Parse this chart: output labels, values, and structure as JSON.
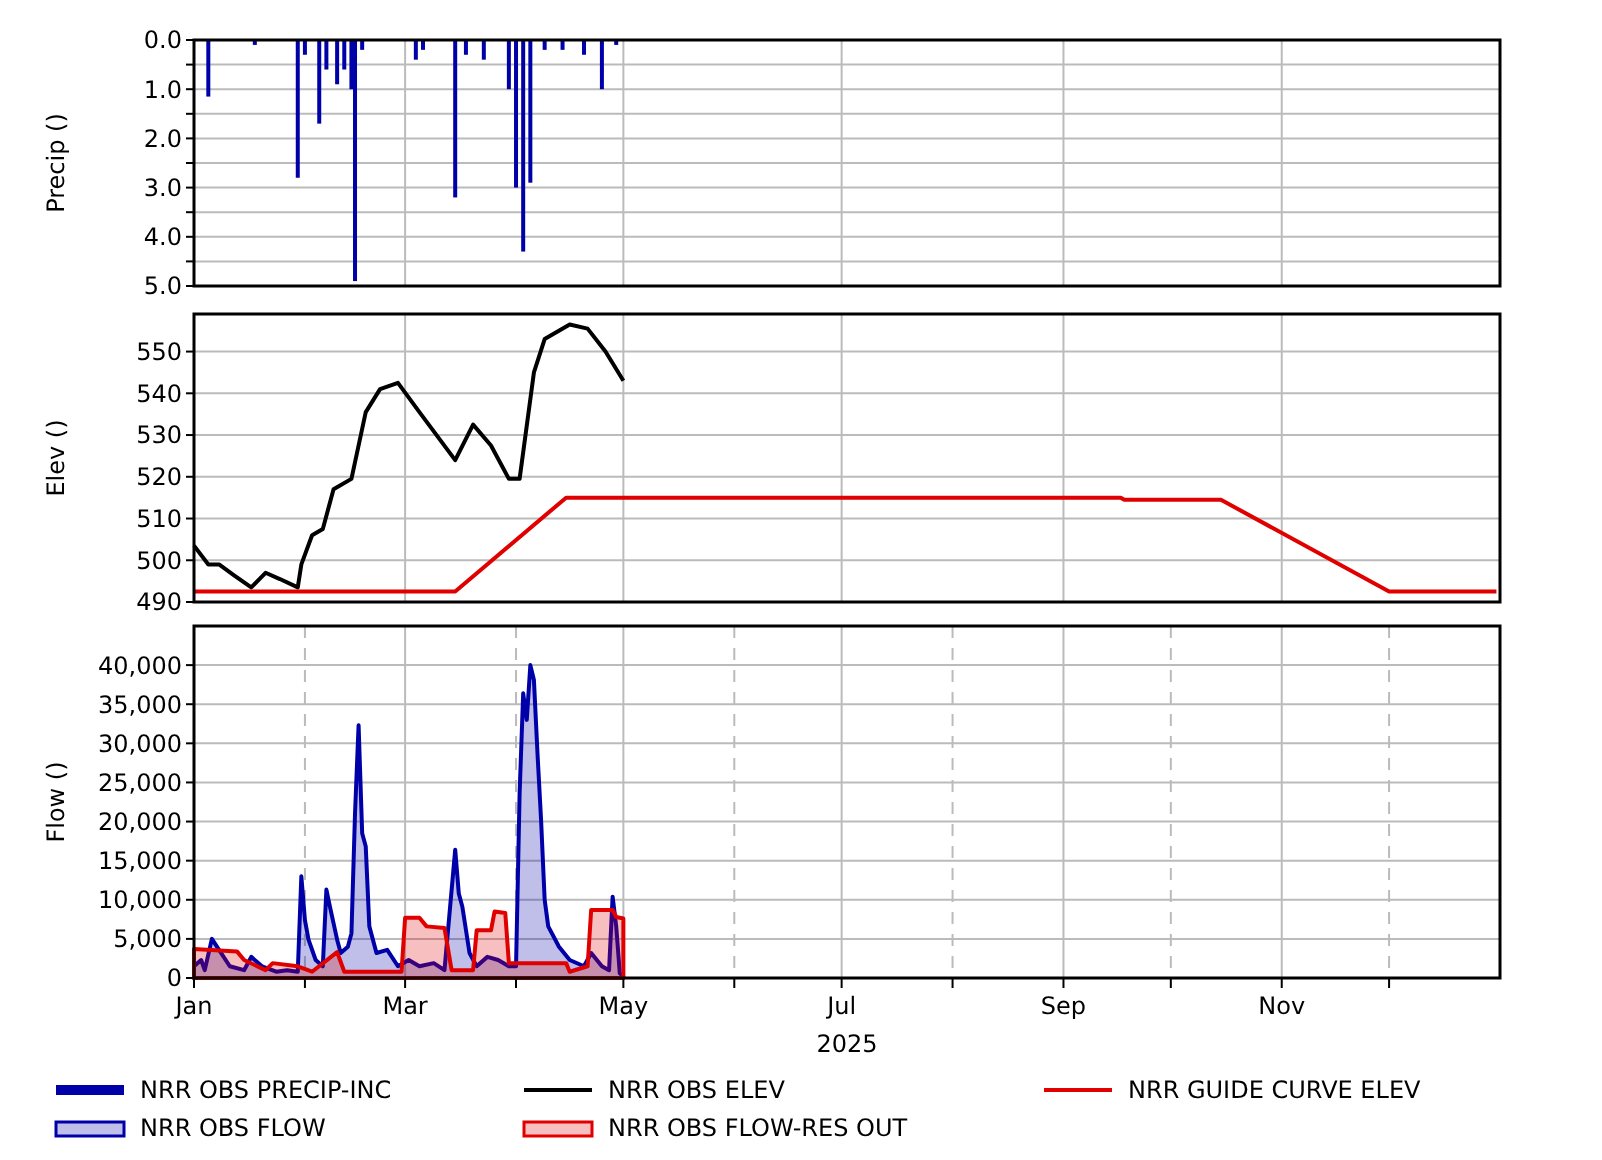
{
  "chart_data": [
    {
      "type": "bar",
      "ylabel": "Precip ()",
      "ylim": [
        5,
        0
      ],
      "yticks": [
        {
          "value": 0,
          "label": "0.0"
        },
        {
          "value": 0.5,
          "label": null
        },
        {
          "value": 1,
          "label": "1.0"
        },
        {
          "value": 1.5,
          "label": null
        },
        {
          "value": 2,
          "label": "2.0"
        },
        {
          "value": 2.5,
          "label": null
        },
        {
          "value": 3,
          "label": "3.0"
        },
        {
          "value": 3.5,
          "label": null
        },
        {
          "value": 4,
          "label": "4.0"
        },
        {
          "value": 4.5,
          "label": null
        },
        {
          "value": 5,
          "label": "5.0"
        }
      ],
      "xlim": [
        "2025-01-01",
        "2026-01-01"
      ],
      "xticks": [
        {
          "value": "2025-03-01",
          "label": null
        },
        {
          "value": "2025-05-01",
          "label": null
        },
        {
          "value": "2025-07-01",
          "label": null
        },
        {
          "value": "2025-09-01",
          "label": null
        },
        {
          "value": "2025-11-01",
          "label": null
        }
      ],
      "tick_labels": "y",
      "grid": true,
      "legend": "bottom",
      "series": [
        {
          "name": "NRR OBS PRECIP-INC",
          "color": "#0000a8",
          "x": [
            "2025-01-05",
            "2025-01-18",
            "2025-01-30",
            "2025-02-01",
            "2025-02-05",
            "2025-02-07",
            "2025-02-10",
            "2025-02-12",
            "2025-02-14",
            "2025-02-15",
            "2025-02-17",
            "2025-03-04",
            "2025-03-06",
            "2025-03-15",
            "2025-03-18",
            "2025-03-23",
            "2025-03-30",
            "2025-04-01",
            "2025-04-03",
            "2025-04-05",
            "2025-04-09",
            "2025-04-14",
            "2025-04-20",
            "2025-04-25",
            "2025-04-29"
          ],
          "values": [
            1.15,
            0.1,
            2.8,
            0.3,
            1.7,
            0.6,
            0.9,
            0.6,
            1.0,
            4.9,
            0.2,
            0.4,
            0.2,
            3.2,
            0.3,
            0.4,
            1.0,
            3.0,
            4.3,
            2.9,
            0.2,
            0.2,
            0.3,
            1.0,
            0.1
          ]
        }
      ]
    },
    {
      "type": "line",
      "ylabel": "Elev ()",
      "ylim": [
        490,
        559
      ],
      "yticks": [
        490,
        500,
        510,
        520,
        530,
        540,
        550
      ],
      "xlim": [
        "2025-01-01",
        "2026-01-01"
      ],
      "xticks": [
        {
          "value": "2025-03-01",
          "label": null
        },
        {
          "value": "2025-05-01",
          "label": null
        },
        {
          "value": "2025-07-01",
          "label": null
        },
        {
          "value": "2025-09-01",
          "label": null
        },
        {
          "value": "2025-11-01",
          "label": null
        }
      ],
      "tick_labels": "y",
      "grid": true,
      "legend": "bottom",
      "series": [
        {
          "name": "NRR OBS ELEV",
          "color": "#000000",
          "x": [
            "2025-01-01",
            "2025-01-05",
            "2025-01-08",
            "2025-01-12",
            "2025-01-17",
            "2025-01-21",
            "2025-01-25",
            "2025-01-30",
            "2025-01-31",
            "2025-02-03",
            "2025-02-06",
            "2025-02-09",
            "2025-02-14",
            "2025-02-18",
            "2025-02-22",
            "2025-02-27",
            "2025-03-05",
            "2025-03-15",
            "2025-03-20",
            "2025-03-25",
            "2025-03-30",
            "2025-04-02",
            "2025-04-06",
            "2025-04-09",
            "2025-04-16",
            "2025-04-21",
            "2025-04-26",
            "2025-05-01"
          ],
          "values": [
            503.5,
            499,
            499,
            496.5,
            493.5,
            497,
            495.5,
            493.5,
            499,
            506,
            507.5,
            517,
            519.5,
            535.5,
            541,
            542.5,
            535.5,
            524,
            532.5,
            527.5,
            519.5,
            519.5,
            545,
            553,
            556.5,
            555.5,
            550,
            543
          ]
        },
        {
          "name": "NRR GUIDE CURVE ELEV",
          "color": "#e00000",
          "x": [
            "2025-01-01",
            "2025-03-15",
            "2025-04-15",
            "2025-09-17",
            "2025-09-18",
            "2025-10-15",
            "2025-12-01",
            "2025-12-31"
          ],
          "values": [
            492.5,
            492.5,
            515,
            515,
            514.5,
            514.5,
            492.5,
            492.5
          ]
        }
      ]
    },
    {
      "type": "area",
      "ylabel": "Flow ()",
      "xlabel": "2025",
      "ylim": [
        0,
        45000
      ],
      "yticks": [
        {
          "value": 0,
          "label": "0"
        },
        {
          "value": 5000,
          "label": "5,000"
        },
        {
          "value": 10000,
          "label": "10,000"
        },
        {
          "value": 15000,
          "label": "15,000"
        },
        {
          "value": 20000,
          "label": "20,000"
        },
        {
          "value": 25000,
          "label": "25,000"
        },
        {
          "value": 30000,
          "label": "30,000"
        },
        {
          "value": 35000,
          "label": "35,000"
        },
        {
          "value": 40000,
          "label": "40,000"
        }
      ],
      "xlim": [
        "2025-01-01",
        "2026-01-01"
      ],
      "xticks": [
        {
          "value": "2025-01-01",
          "label": "Jan"
        },
        {
          "value": "2025-02-01",
          "label": null
        },
        {
          "value": "2025-03-01",
          "label": "Mar"
        },
        {
          "value": "2025-04-01",
          "label": null
        },
        {
          "value": "2025-05-01",
          "label": "May"
        },
        {
          "value": "2025-06-01",
          "label": null
        },
        {
          "value": "2025-07-01",
          "label": "Jul"
        },
        {
          "value": "2025-08-01",
          "label": null
        },
        {
          "value": "2025-09-01",
          "label": "Sep"
        },
        {
          "value": "2025-10-01",
          "label": null
        },
        {
          "value": "2025-11-01",
          "label": "Nov"
        },
        {
          "value": "2025-12-01",
          "label": null
        }
      ],
      "grid": true,
      "legend": "bottom",
      "series": [
        {
          "name": "NRR OBS FLOW",
          "color": "#0000a8",
          "x": [
            "2025-01-01",
            "2025-01-03",
            "2025-01-04",
            "2025-01-06",
            "2025-01-08",
            "2025-01-11",
            "2025-01-15",
            "2025-01-17",
            "2025-01-20",
            "2025-01-24",
            "2025-01-27",
            "2025-01-30",
            "2025-01-31",
            "2025-02-01",
            "2025-02-02",
            "2025-02-04",
            "2025-02-06",
            "2025-02-07",
            "2025-02-08",
            "2025-02-10",
            "2025-02-11",
            "2025-02-13",
            "2025-02-14",
            "2025-02-15",
            "2025-02-16",
            "2025-02-17",
            "2025-02-18",
            "2025-02-19",
            "2025-02-21",
            "2025-02-24",
            "2025-02-27",
            "2025-03-02",
            "2025-03-05",
            "2025-03-09",
            "2025-03-12",
            "2025-03-15",
            "2025-03-16",
            "2025-03-17",
            "2025-03-19",
            "2025-03-21",
            "2025-03-24",
            "2025-03-27",
            "2025-03-30",
            "2025-04-01",
            "2025-04-02",
            "2025-04-03",
            "2025-04-04",
            "2025-04-05",
            "2025-04-06",
            "2025-04-07",
            "2025-04-08",
            "2025-04-09",
            "2025-04-10",
            "2025-04-13",
            "2025-04-16",
            "2025-04-20",
            "2025-04-22",
            "2025-04-25",
            "2025-04-27",
            "2025-04-28",
            "2025-04-29",
            "2025-04-30",
            "2025-05-01"
          ],
          "values": [
            1500,
            2300,
            1000,
            5000,
            3600,
            1500,
            1000,
            2700,
            1500,
            800,
            1000,
            800,
            13000,
            7400,
            4900,
            2300,
            1500,
            11300,
            9100,
            4900,
            3200,
            4000,
            5700,
            21000,
            32300,
            18500,
            16800,
            6600,
            3200,
            3600,
            1500,
            2300,
            1500,
            1900,
            1000,
            16400,
            10800,
            9100,
            3200,
            1500,
            2700,
            2300,
            1500,
            1500,
            23600,
            36400,
            33000,
            40000,
            38100,
            28700,
            20200,
            10000,
            6600,
            4000,
            2300,
            1500,
            3200,
            1500,
            1000,
            10400,
            6600,
            600,
            200
          ]
        },
        {
          "name": "NRR OBS FLOW-RES OUT",
          "color": "#e00000",
          "x": [
            "2025-01-01",
            "2025-01-13",
            "2025-01-15",
            "2025-01-21",
            "2025-01-23",
            "2025-01-30",
            "2025-02-03",
            "2025-02-10",
            "2025-02-12",
            "2025-02-28",
            "2025-03-01",
            "2025-03-05",
            "2025-03-07",
            "2025-03-12",
            "2025-03-14",
            "2025-03-20",
            "2025-03-21",
            "2025-03-25",
            "2025-03-26",
            "2025-03-29",
            "2025-03-30",
            "2025-04-15",
            "2025-04-16",
            "2025-04-21",
            "2025-04-22",
            "2025-04-28",
            "2025-04-29",
            "2025-05-01"
          ],
          "values": [
            3700,
            3400,
            2300,
            1000,
            1900,
            1500,
            800,
            3300,
            800,
            800,
            7700,
            7700,
            6600,
            6400,
            1000,
            1000,
            6100,
            6100,
            8500,
            8300,
            1900,
            1900,
            800,
            1500,
            8700,
            8700,
            7800,
            7600
          ]
        }
      ]
    }
  ]
}
